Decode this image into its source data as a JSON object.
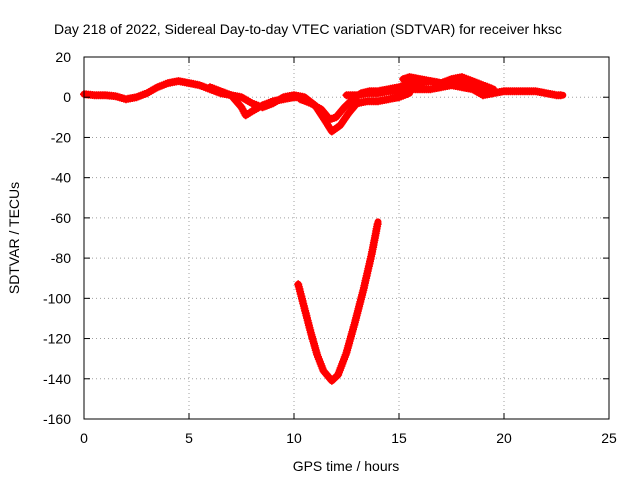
{
  "chart_data": {
    "type": "scatter",
    "title": "Day 218 of 2022, Sidereal Day-to-day VTEC variation (SDTVAR) for receiver hksc",
    "xlabel": "GPS time / hours",
    "ylabel": "SDTVAR / TECUs",
    "xlim": [
      0,
      25
    ],
    "ylim": [
      -160,
      20
    ],
    "xticks": [
      0,
      5,
      10,
      15,
      20,
      25
    ],
    "yticks": [
      20,
      0,
      -20,
      -40,
      -60,
      -80,
      -100,
      -120,
      -140,
      -160
    ],
    "grid": true,
    "legend": "none",
    "series": [
      {
        "name": "SDTVAR",
        "color": "#ff0000",
        "marker": "plus",
        "tracks": [
          [
            [
              0,
              1.5
            ],
            [
              0.5,
              1
            ],
            [
              1,
              1
            ],
            [
              1.5,
              0.5
            ],
            [
              2,
              -1
            ],
            [
              2.5,
              0
            ],
            [
              3,
              2
            ],
            [
              3.5,
              5
            ],
            [
              4,
              7
            ],
            [
              4.5,
              8
            ],
            [
              5,
              7
            ],
            [
              5.5,
              6
            ],
            [
              6,
              4
            ],
            [
              6.5,
              2
            ],
            [
              7,
              1
            ],
            [
              7.5,
              0
            ],
            [
              8,
              -3
            ],
            [
              8.5,
              -5
            ],
            [
              9,
              -3
            ],
            [
              9.5,
              0
            ],
            [
              10,
              1
            ],
            [
              10.5,
              0
            ]
          ],
          [
            [
              6,
              5
            ],
            [
              6.5,
              3
            ],
            [
              7,
              1
            ],
            [
              7.5,
              -5
            ],
            [
              7.7,
              -9
            ],
            [
              8,
              -7
            ],
            [
              8.5,
              -4
            ],
            [
              9,
              -2
            ],
            [
              9.5,
              -1
            ],
            [
              10,
              0
            ],
            [
              10.5,
              0
            ],
            [
              11,
              -4
            ],
            [
              11.5,
              -12
            ],
            [
              11.8,
              -17
            ],
            [
              12.2,
              -14
            ],
            [
              12.6,
              -8
            ],
            [
              13,
              -3
            ],
            [
              13.5,
              -2
            ],
            [
              14,
              -2
            ],
            [
              14.5,
              -1
            ],
            [
              15,
              0
            ],
            [
              15.5,
              2
            ]
          ],
          [
            [
              10.3,
              -1
            ],
            [
              10.8,
              -3
            ],
            [
              11.3,
              -6
            ],
            [
              11.7,
              -11
            ],
            [
              12,
              -10
            ],
            [
              12.4,
              -5
            ],
            [
              12.8,
              -1
            ],
            [
              13.2,
              2
            ],
            [
              13.6,
              3
            ],
            [
              14,
              3
            ],
            [
              14.5,
              4
            ],
            [
              15,
              5
            ],
            [
              15.5,
              7
            ],
            [
              16,
              7
            ],
            [
              16.5,
              8
            ],
            [
              17,
              7
            ],
            [
              17.5,
              9
            ],
            [
              18,
              10
            ],
            [
              18.5,
              8
            ],
            [
              19,
              6
            ],
            [
              19.5,
              4
            ]
          ],
          [
            [
              12.5,
              1
            ],
            [
              13,
              1
            ],
            [
              13.5,
              2
            ],
            [
              14,
              2
            ],
            [
              14.5,
              3
            ],
            [
              15,
              3
            ],
            [
              15.5,
              4
            ],
            [
              16,
              4
            ],
            [
              16.5,
              4
            ],
            [
              17,
              5
            ],
            [
              17.5,
              6
            ],
            [
              18,
              5
            ],
            [
              18.5,
              4
            ],
            [
              19,
              1
            ],
            [
              19.5,
              2
            ],
            [
              20,
              3
            ],
            [
              20.5,
              3
            ],
            [
              21,
              3
            ],
            [
              21.5,
              3
            ],
            [
              22,
              2
            ],
            [
              22.5,
              1
            ],
            [
              22.8,
              1
            ]
          ],
          [
            [
              15.2,
              9
            ],
            [
              15.5,
              10
            ],
            [
              16,
              9
            ],
            [
              16.5,
              8
            ],
            [
              17,
              7
            ],
            [
              17.5,
              8
            ],
            [
              18,
              8
            ],
            [
              18.5,
              7
            ],
            [
              19,
              4
            ],
            [
              19.5,
              3
            ]
          ],
          [
            [
              10.2,
              -93
            ],
            [
              10.5,
              -105
            ],
            [
              10.8,
              -117
            ],
            [
              11.1,
              -128
            ],
            [
              11.4,
              -136
            ],
            [
              11.8,
              -141
            ],
            [
              12.1,
              -138
            ],
            [
              12.5,
              -127
            ],
            [
              12.9,
              -112
            ],
            [
              13.3,
              -96
            ],
            [
              13.7,
              -78
            ],
            [
              14,
              -62
            ]
          ]
        ]
      }
    ]
  }
}
